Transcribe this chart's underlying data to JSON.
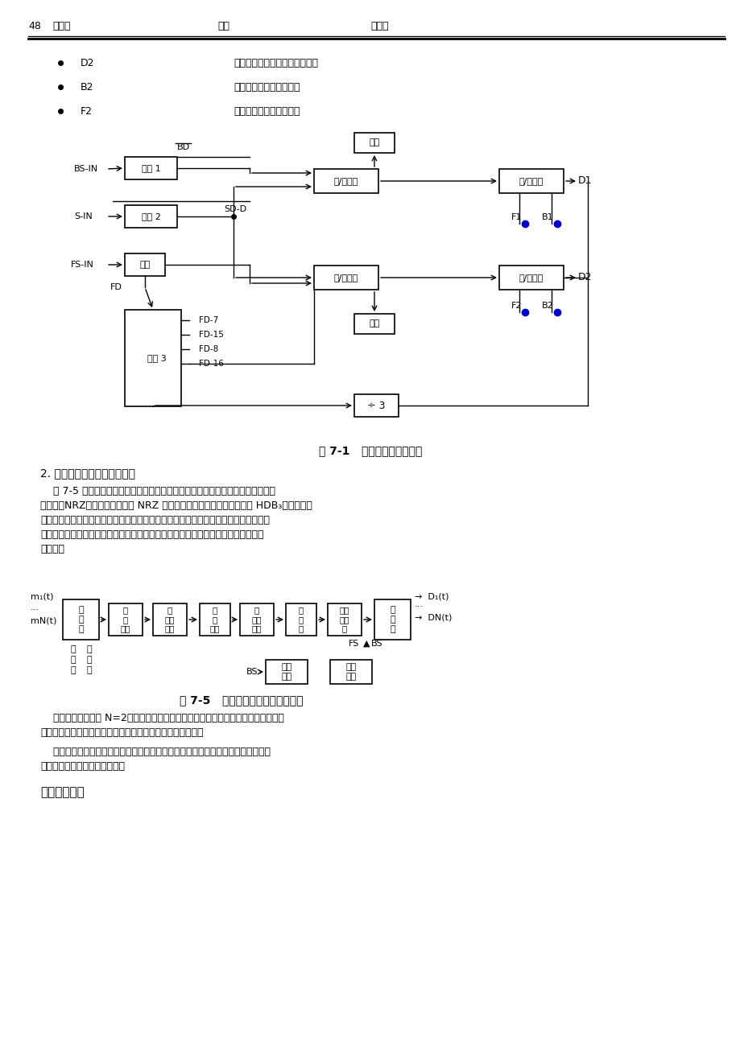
{
  "page_num": "48",
  "header_items": [
    "姓名：",
    "班级",
    "学号："
  ],
  "bullet_items": [
    [
      "D2",
      "分接后的第二路数字信号测试点"
    ],
    [
      "B2",
      "第二路位同步信号测试点"
    ],
    [
      "F2",
      "第二路帧同步信号测试点"
    ]
  ],
  "fig1_title": "图 7-1   数字终端原理方框图",
  "section2_title": "2. 时分复用数字基带通信系统",
  "para1": "图 7-5 为时分复用数字基带通信系统原理方框图。复接器输出时分复用单极性不\n归零码（NRZ），码型变换器将 NRZ 码变为适于信道传输的传输码（如 HDB₃码等），发\n滤波器主要用来限制基带信号频带，收滤波器可以滤除一部分噪声，同时与发滤波器、\n信道一起构成无码间串扰的基带传输特性。复接器和分接器都需要位同步信号和帧同\n步信号。",
  "fig2_title": "图 7-5   时分复用数字基带通信系统",
  "para2": "本实验中复接路数 N=2，信道是理想的、即相当于将发滤波器输出信号无失真地传\n输到收滤波器。为简化实验设备，收、发滤波器也被省略掉。",
  "para3": "本实验的主要目的是掌握位同步信号及帧同步信号在数字基带传输中的作用，故也\n可省略码型变换和反变换单元。",
  "section4_title": "四、实验步骤",
  "bg_color": "#ffffff",
  "text_color": "#000000",
  "diagram_line_color": "#000000",
  "blue_dot_color": "#0000cc"
}
